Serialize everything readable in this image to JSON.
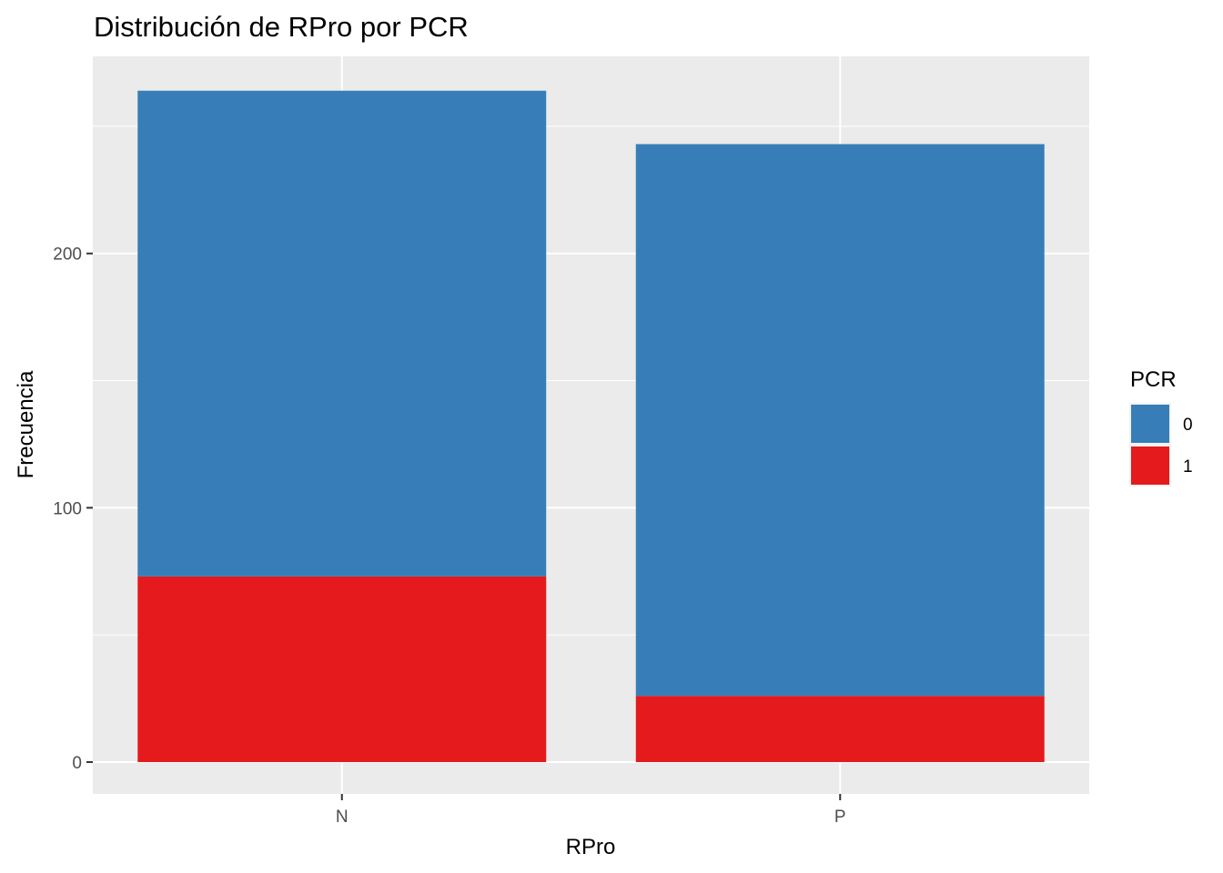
{
  "chart_data": {
    "type": "bar",
    "stacked": true,
    "title": "Distribución de RPro por PCR",
    "xlabel": "RPro",
    "ylabel": "Frecuencia",
    "categories": [
      "N",
      "P"
    ],
    "series": [
      {
        "name": "0",
        "values": [
          191,
          217
        ],
        "color": "#377EB8"
      },
      {
        "name": "1",
        "values": [
          73,
          26
        ],
        "color": "#E41A1C"
      }
    ],
    "ylim": [
      -12.5,
      277.5
    ],
    "y_ticks": [
      0,
      100,
      200
    ],
    "y_minor_ticks": [
      50,
      150,
      250
    ],
    "grid": true,
    "legend": {
      "title": "PCR",
      "position": "right"
    },
    "panel_background": "#EBEBEB",
    "grid_color": "#FFFFFF"
  }
}
